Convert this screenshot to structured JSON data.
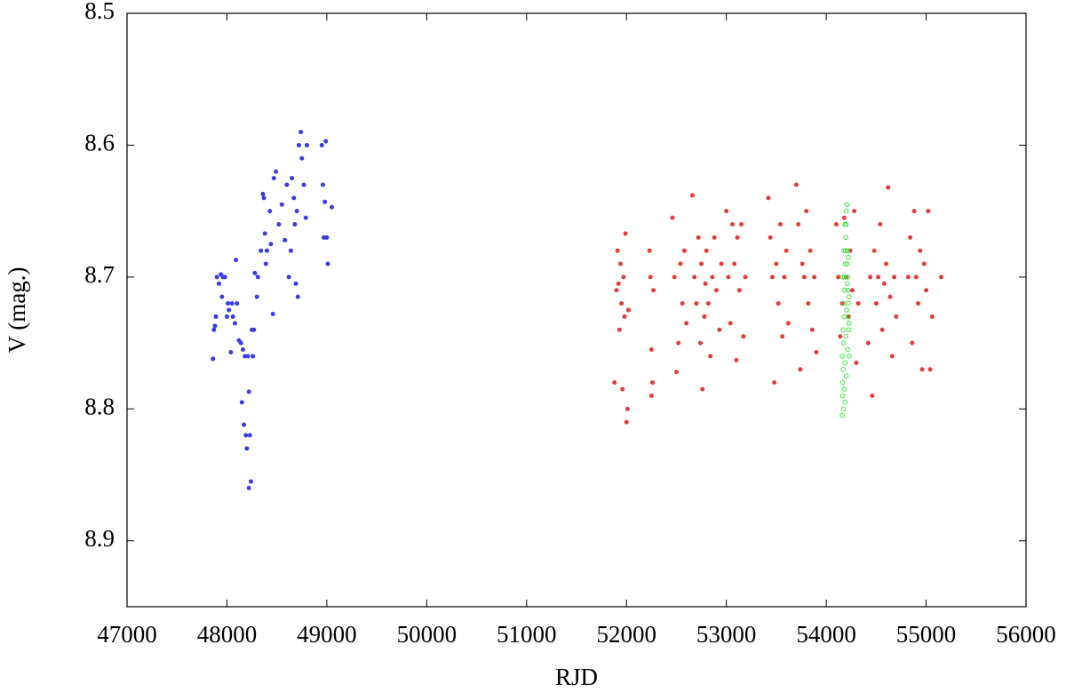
{
  "chart_data": {
    "type": "scatter",
    "xlabel": "RJD",
    "ylabel": "V (mag.)",
    "xlim": [
      47000,
      56000
    ],
    "xticks": [
      47000,
      48000,
      49000,
      50000,
      51000,
      52000,
      53000,
      54000,
      55000,
      56000
    ],
    "ylim": [
      8.95,
      8.5
    ],
    "yticks": [
      8.5,
      8.6,
      8.7,
      8.8,
      8.9
    ],
    "y_inverted": true,
    "series": [
      {
        "color": "#3b3be6",
        "marker": "filled",
        "x": [
          47860,
          47870,
          47880,
          47890,
          47900,
          47920,
          47940,
          47950,
          47960,
          47980,
          48000,
          48010,
          48020,
          48040,
          48050,
          48060,
          48080,
          48090,
          48100,
          48120,
          48140,
          48150,
          48160,
          48170,
          48180,
          48190,
          48200,
          48210,
          48220,
          48230,
          48240,
          48220,
          48250,
          48260,
          48270,
          48280,
          48300,
          48310,
          48340,
          48360,
          48370,
          48380,
          48390,
          48400,
          48430,
          48440,
          48460,
          48470,
          48490,
          48520,
          48550,
          48580,
          48600,
          48620,
          48640,
          48650,
          48670,
          48680,
          48690,
          48700,
          48710,
          48720,
          48740,
          48750,
          48770,
          48790,
          48800,
          48950,
          48960,
          48970,
          48980,
          48990,
          49000,
          49010,
          49050
        ],
        "y": [
          8.762,
          8.74,
          8.737,
          8.73,
          8.7,
          8.705,
          8.698,
          8.715,
          8.7,
          8.7,
          8.73,
          8.72,
          8.725,
          8.757,
          8.72,
          8.73,
          8.735,
          8.687,
          8.72,
          8.748,
          8.75,
          8.795,
          8.755,
          8.812,
          8.76,
          8.82,
          8.83,
          8.76,
          8.787,
          8.82,
          8.855,
          8.86,
          8.74,
          8.76,
          8.74,
          8.697,
          8.715,
          8.7,
          8.68,
          8.637,
          8.64,
          8.667,
          8.69,
          8.68,
          8.65,
          8.675,
          8.728,
          8.625,
          8.62,
          8.66,
          8.645,
          8.672,
          8.63,
          8.7,
          8.68,
          8.625,
          8.64,
          8.66,
          8.705,
          8.65,
          8.715,
          8.6,
          8.59,
          8.61,
          8.63,
          8.655,
          8.6,
          8.6,
          8.63,
          8.67,
          8.643,
          8.597,
          8.67,
          8.69,
          8.647
        ]
      },
      {
        "color": "#e63b3b",
        "marker": "filled",
        "x": [
          51880,
          51900,
          51910,
          51920,
          51930,
          51940,
          51950,
          51960,
          51970,
          51980,
          51990,
          52000,
          52010,
          52020,
          52230,
          52240,
          52250,
          52260,
          52270,
          52250,
          52460,
          52480,
          52500,
          52520,
          52540,
          52560,
          52580,
          52600,
          52660,
          52680,
          52700,
          52720,
          52740,
          52750,
          52760,
          52780,
          52790,
          52800,
          52820,
          52840,
          52860,
          52880,
          52900,
          52930,
          52950,
          53000,
          53020,
          53040,
          53060,
          53080,
          53100,
          53110,
          53130,
          53150,
          53170,
          53190,
          53420,
          53440,
          53460,
          53480,
          53500,
          53520,
          53540,
          53560,
          53580,
          53600,
          53620,
          53700,
          53720,
          53740,
          53760,
          53780,
          53800,
          53820,
          53840,
          53860,
          53880,
          53900,
          54100,
          54120,
          54140,
          54160,
          54180,
          54200,
          54220,
          54240,
          54260,
          54280,
          54300,
          54320,
          54420,
          54440,
          54460,
          54480,
          54500,
          54520,
          54540,
          54560,
          54580,
          54600,
          54620,
          54640,
          54660,
          54680,
          54700,
          54820,
          54840,
          54860,
          54880,
          54900,
          54920,
          54940,
          54960,
          54980,
          55000,
          55020,
          55040,
          55060,
          55150
        ],
        "y": [
          8.78,
          8.71,
          8.68,
          8.705,
          8.74,
          8.69,
          8.72,
          8.785,
          8.7,
          8.73,
          8.667,
          8.81,
          8.8,
          8.725,
          8.68,
          8.7,
          8.755,
          8.78,
          8.71,
          8.79,
          8.655,
          8.7,
          8.772,
          8.75,
          8.69,
          8.72,
          8.68,
          8.735,
          8.638,
          8.7,
          8.72,
          8.67,
          8.75,
          8.69,
          8.785,
          8.73,
          8.705,
          8.68,
          8.72,
          8.76,
          8.7,
          8.67,
          8.71,
          8.74,
          8.69,
          8.65,
          8.7,
          8.735,
          8.66,
          8.69,
          8.763,
          8.67,
          8.71,
          8.66,
          8.745,
          8.7,
          8.64,
          8.67,
          8.7,
          8.78,
          8.69,
          8.72,
          8.66,
          8.745,
          8.7,
          8.68,
          8.735,
          8.63,
          8.66,
          8.77,
          8.69,
          8.7,
          8.65,
          8.72,
          8.68,
          8.74,
          8.7,
          8.757,
          8.66,
          8.7,
          8.745,
          8.72,
          8.655,
          8.7,
          8.73,
          8.68,
          8.71,
          8.65,
          8.765,
          8.72,
          8.75,
          8.7,
          8.79,
          8.68,
          8.72,
          8.7,
          8.66,
          8.74,
          8.705,
          8.69,
          8.632,
          8.715,
          8.76,
          8.7,
          8.73,
          8.7,
          8.67,
          8.75,
          8.65,
          8.7,
          8.72,
          8.68,
          8.77,
          8.69,
          8.71,
          8.65,
          8.77,
          8.73,
          8.7
        ]
      },
      {
        "color": "#3ee63e",
        "marker": "open",
        "x": [
          54160,
          54165,
          54170,
          54175,
          54180,
          54185,
          54190,
          54195,
          54200,
          54205,
          54210,
          54215,
          54220,
          54225,
          54230,
          54160,
          54168,
          54176,
          54184,
          54192,
          54200,
          54208,
          54216,
          54224,
          54164,
          54172,
          54180,
          54188,
          54196,
          54204,
          54212,
          54220,
          54228,
          54166,
          54178,
          54190,
          54202,
          54214,
          54226,
          54186
        ],
        "y": [
          8.805,
          8.79,
          8.77,
          8.75,
          8.73,
          8.71,
          8.69,
          8.67,
          8.65,
          8.645,
          8.68,
          8.7,
          8.72,
          8.74,
          8.76,
          8.76,
          8.74,
          8.72,
          8.7,
          8.68,
          8.66,
          8.69,
          8.71,
          8.73,
          8.78,
          8.8,
          8.785,
          8.765,
          8.745,
          8.725,
          8.705,
          8.685,
          8.715,
          8.7,
          8.68,
          8.795,
          8.775,
          8.755,
          8.735,
          8.66
        ]
      }
    ]
  }
}
